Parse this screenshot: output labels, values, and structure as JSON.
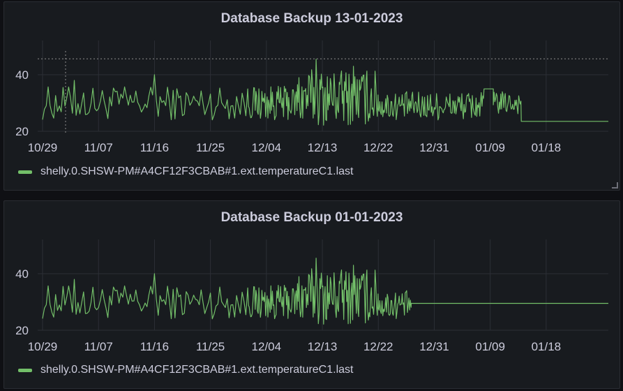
{
  "colors": {
    "series": "#73bf69",
    "grid": "#2c2f36",
    "threshold": "#8e8e8e"
  },
  "chart_data": [
    {
      "type": "line",
      "title": "Database Backup 13-01-2023",
      "xlabel": "",
      "ylabel": "",
      "x_ticks": [
        "10/29",
        "11/07",
        "11/16",
        "11/25",
        "12/04",
        "12/13",
        "12/22",
        "12/31",
        "01/09",
        "01/18"
      ],
      "y_ticks": [
        "20",
        "40"
      ],
      "ylim": [
        20,
        46
      ],
      "x_range_days": [
        0,
        91
      ],
      "grid": true,
      "legend_position": "bottom-left",
      "reference_line_y": 45.5,
      "crosshair_day": 3.7,
      "series": [
        {
          "name": "shelly.0.SHSW-PM#A4CF12F3CBAB#1.ext.temperatureC1.last",
          "segments": [
            {
              "from_day": 0,
              "to_day": 33,
              "base": 30,
              "amp": 6,
              "noise": "medium"
            },
            {
              "from_day": 33,
              "to_day": 41,
              "base": 30,
              "amp": 6,
              "noise": "dense"
            },
            {
              "from_day": 41,
              "to_day": 54,
              "base": 32,
              "amp": 10,
              "noise": "dense"
            },
            {
              "from_day": 54,
              "to_day": 71,
              "base": 29,
              "amp": 5,
              "noise": "dense"
            },
            {
              "from_day": 71,
              "to_day": 72.5,
              "base": 35,
              "amp": 0.5,
              "noise": "flat"
            },
            {
              "from_day": 72.5,
              "to_day": 77,
              "base": 30,
              "amp": 4,
              "noise": "dense"
            },
            {
              "from_day": 77,
              "to_day": 91,
              "base": 23.5,
              "amp": 0,
              "noise": "flat"
            }
          ],
          "peaks": [
            [
              44,
              45.5
            ],
            [
              50,
              43
            ],
            [
              18,
              40
            ],
            [
              5,
              38
            ]
          ]
        }
      ]
    },
    {
      "type": "line",
      "title": "Database Backup 01-01-2023",
      "xlabel": "",
      "ylabel": "",
      "x_ticks": [
        "10/29",
        "11/07",
        "11/16",
        "11/25",
        "12/04",
        "12/13",
        "12/22",
        "12/31",
        "01/09",
        "01/18"
      ],
      "y_ticks": [
        "20",
        "40"
      ],
      "ylim": [
        20,
        46
      ],
      "x_range_days": [
        0,
        91
      ],
      "grid": true,
      "legend_position": "bottom-left",
      "series": [
        {
          "name": "shelly.0.SHSW-PM#A4CF12F3CBAB#1.ext.temperatureC1.last",
          "segments": [
            {
              "from_day": 0,
              "to_day": 33,
              "base": 30,
              "amp": 6,
              "noise": "medium"
            },
            {
              "from_day": 33,
              "to_day": 41,
              "base": 30,
              "amp": 6,
              "noise": "dense"
            },
            {
              "from_day": 41,
              "to_day": 54,
              "base": 32,
              "amp": 10,
              "noise": "dense"
            },
            {
              "from_day": 54,
              "to_day": 59.3,
              "base": 29,
              "amp": 5,
              "noise": "dense"
            },
            {
              "from_day": 59.3,
              "to_day": 91,
              "base": 29.5,
              "amp": 0,
              "noise": "flat"
            }
          ],
          "peaks": [
            [
              44,
              45.5
            ],
            [
              50,
              43
            ],
            [
              18,
              40
            ],
            [
              5,
              38
            ]
          ]
        }
      ]
    }
  ]
}
